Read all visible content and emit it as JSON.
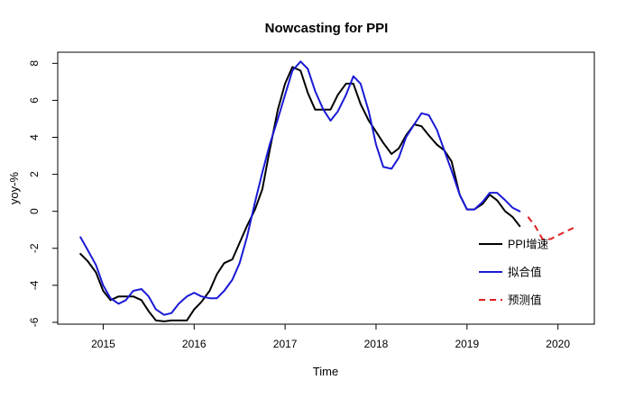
{
  "chart_data": {
    "type": "line",
    "title": "Nowcasting for PPI",
    "xlabel": "Time",
    "ylabel": "yoy-%",
    "xlim": [
      2014.5,
      2020.4
    ],
    "ylim": [
      -6.1,
      8.6
    ],
    "x_ticks": [
      2015,
      2016,
      2017,
      2018,
      2019,
      2020
    ],
    "x_tick_labels": [
      "2015",
      "2016",
      "2017",
      "2018",
      "2019",
      "2020"
    ],
    "y_ticks": [
      -6,
      -4,
      -2,
      0,
      2,
      4,
      6,
      8
    ],
    "y_tick_labels": [
      "-6",
      "-4",
      "-2",
      "0",
      "2",
      "4",
      "6",
      "8"
    ],
    "grid": false,
    "legend_position": "bottom-right",
    "series": [
      {
        "name": "PPI增速",
        "color": "#000000",
        "dash": "solid",
        "points": [
          [
            2014.75,
            -2.3
          ],
          [
            2014.83,
            -2.7
          ],
          [
            2014.92,
            -3.3
          ],
          [
            2015.0,
            -4.3
          ],
          [
            2015.08,
            -4.8
          ],
          [
            2015.17,
            -4.6
          ],
          [
            2015.25,
            -4.6
          ],
          [
            2015.33,
            -4.6
          ],
          [
            2015.42,
            -4.8
          ],
          [
            2015.5,
            -5.4
          ],
          [
            2015.58,
            -5.9
          ],
          [
            2015.67,
            -5.95
          ],
          [
            2015.75,
            -5.9
          ],
          [
            2015.83,
            -5.9
          ],
          [
            2015.92,
            -5.9
          ],
          [
            2016.0,
            -5.3
          ],
          [
            2016.08,
            -4.9
          ],
          [
            2016.17,
            -4.3
          ],
          [
            2016.25,
            -3.4
          ],
          [
            2016.33,
            -2.8
          ],
          [
            2016.42,
            -2.6
          ],
          [
            2016.5,
            -1.7
          ],
          [
            2016.58,
            -0.8
          ],
          [
            2016.67,
            0.1
          ],
          [
            2016.75,
            1.2
          ],
          [
            2016.83,
            3.3
          ],
          [
            2016.92,
            5.5
          ],
          [
            2017.0,
            6.9
          ],
          [
            2017.08,
            7.8
          ],
          [
            2017.17,
            7.6
          ],
          [
            2017.25,
            6.4
          ],
          [
            2017.33,
            5.5
          ],
          [
            2017.42,
            5.5
          ],
          [
            2017.5,
            5.5
          ],
          [
            2017.58,
            6.3
          ],
          [
            2017.67,
            6.9
          ],
          [
            2017.75,
            6.9
          ],
          [
            2017.83,
            5.8
          ],
          [
            2017.92,
            4.9
          ],
          [
            2018.0,
            4.3
          ],
          [
            2018.08,
            3.7
          ],
          [
            2018.17,
            3.1
          ],
          [
            2018.25,
            3.4
          ],
          [
            2018.33,
            4.1
          ],
          [
            2018.42,
            4.7
          ],
          [
            2018.5,
            4.6
          ],
          [
            2018.58,
            4.1
          ],
          [
            2018.67,
            3.6
          ],
          [
            2018.75,
            3.3
          ],
          [
            2018.83,
            2.7
          ],
          [
            2018.92,
            0.9
          ],
          [
            2019.0,
            0.1
          ],
          [
            2019.08,
            0.1
          ],
          [
            2019.17,
            0.4
          ],
          [
            2019.25,
            0.9
          ],
          [
            2019.33,
            0.6
          ],
          [
            2019.42,
            0.0
          ],
          [
            2019.5,
            -0.3
          ],
          [
            2019.58,
            -0.8
          ]
        ]
      },
      {
        "name": "拟合值",
        "color": "#1a1ad6",
        "dash": "solid",
        "points": [
          [
            2014.75,
            -1.4
          ],
          [
            2014.83,
            -2.1
          ],
          [
            2014.92,
            -2.9
          ],
          [
            2015.0,
            -4.0
          ],
          [
            2015.08,
            -4.7
          ],
          [
            2015.17,
            -5.0
          ],
          [
            2015.25,
            -4.8
          ],
          [
            2015.33,
            -4.3
          ],
          [
            2015.42,
            -4.2
          ],
          [
            2015.5,
            -4.6
          ],
          [
            2015.58,
            -5.3
          ],
          [
            2015.67,
            -5.6
          ],
          [
            2015.75,
            -5.5
          ],
          [
            2015.83,
            -5.0
          ],
          [
            2015.92,
            -4.6
          ],
          [
            2016.0,
            -4.4
          ],
          [
            2016.08,
            -4.6
          ],
          [
            2016.17,
            -4.7
          ],
          [
            2016.25,
            -4.7
          ],
          [
            2016.33,
            -4.3
          ],
          [
            2016.42,
            -3.7
          ],
          [
            2016.5,
            -2.8
          ],
          [
            2016.58,
            -1.4
          ],
          [
            2016.67,
            0.5
          ],
          [
            2016.75,
            2.1
          ],
          [
            2016.83,
            3.6
          ],
          [
            2016.92,
            5.0
          ],
          [
            2017.0,
            6.3
          ],
          [
            2017.08,
            7.6
          ],
          [
            2017.17,
            8.1
          ],
          [
            2017.25,
            7.7
          ],
          [
            2017.33,
            6.5
          ],
          [
            2017.42,
            5.5
          ],
          [
            2017.5,
            4.9
          ],
          [
            2017.58,
            5.4
          ],
          [
            2017.67,
            6.3
          ],
          [
            2017.75,
            7.3
          ],
          [
            2017.83,
            6.9
          ],
          [
            2017.92,
            5.4
          ],
          [
            2018.0,
            3.6
          ],
          [
            2018.08,
            2.4
          ],
          [
            2018.17,
            2.3
          ],
          [
            2018.25,
            2.9
          ],
          [
            2018.33,
            4.0
          ],
          [
            2018.42,
            4.7
          ],
          [
            2018.5,
            5.3
          ],
          [
            2018.58,
            5.2
          ],
          [
            2018.67,
            4.4
          ],
          [
            2018.75,
            3.3
          ],
          [
            2018.83,
            2.2
          ],
          [
            2018.92,
            0.9
          ],
          [
            2019.0,
            0.1
          ],
          [
            2019.08,
            0.1
          ],
          [
            2019.17,
            0.5
          ],
          [
            2019.25,
            1.0
          ],
          [
            2019.33,
            1.0
          ],
          [
            2019.42,
            0.6
          ],
          [
            2019.5,
            0.2
          ],
          [
            2019.58,
            0.0
          ]
        ]
      },
      {
        "name": "预测值",
        "color": "#e02020",
        "dash": "dashed",
        "points": [
          [
            2019.67,
            -0.3
          ],
          [
            2019.75,
            -0.8
          ],
          [
            2019.83,
            -1.5
          ],
          [
            2019.92,
            -1.5
          ],
          [
            2020.0,
            -1.3
          ],
          [
            2020.08,
            -1.1
          ],
          [
            2020.17,
            -0.9
          ]
        ]
      }
    ]
  }
}
